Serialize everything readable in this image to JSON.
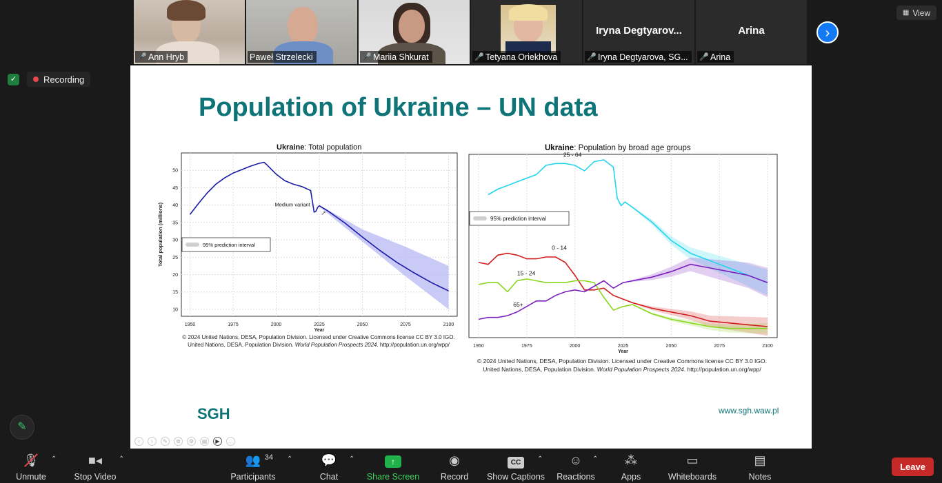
{
  "participants": [
    {
      "name": "Ann Hryb",
      "muted": true,
      "video": true
    },
    {
      "name": "Paweł Strzelecki",
      "muted": false,
      "video": true,
      "active": true
    },
    {
      "name": "Mariia Shkurat",
      "muted": true,
      "video": true
    },
    {
      "name": "Tetyana Oriekhova",
      "muted": true,
      "video": true
    },
    {
      "name": "Iryna Degtyarova, SG...",
      "display_name": "Iryna  Degtyarov...",
      "muted": true,
      "video": false
    },
    {
      "name": "Arina",
      "display_name": "Arina",
      "muted": true,
      "video": false
    }
  ],
  "view_label": "View",
  "recording_label": "Recording",
  "slide": {
    "title": "Population of Ukraine – UN data",
    "logo": "SGH",
    "website": "www.sgh.waw.pl",
    "credit_line1": "© 2024 United Nations, DESA, Population Division. Licensed under Creative Commons license CC BY 3.0 IGO.",
    "credit_line2_a": "United Nations, DESA, Population Division. ",
    "credit_line2_b": "World Population Prospects 2024",
    "credit_line2_c": ". http://population.un.org/wpp/"
  },
  "chart_data": [
    {
      "type": "line",
      "title_bold": "Ukraine",
      "title": ": Total population",
      "xlabel": "Year",
      "ylabel": "Total population (millions)",
      "xlim": [
        1945,
        2105
      ],
      "ylim": [
        8,
        55
      ],
      "x_ticks": [
        1950,
        1975,
        2000,
        2025,
        2050,
        2075,
        2100
      ],
      "y_ticks": [
        10,
        15,
        20,
        25,
        30,
        35,
        40,
        45,
        50
      ],
      "grid": true,
      "legend": "95% prediction interval",
      "annotation": "Medium variant",
      "series": [
        {
          "color": "#1a1aa8",
          "x": [
            1950,
            1955,
            1960,
            1965,
            1970,
            1975,
            1980,
            1985,
            1990,
            1993,
            1995,
            2000,
            2005,
            2010,
            2015,
            2020,
            2022,
            2023,
            2024,
            2025,
            2030,
            2040,
            2050,
            2060,
            2070,
            2080,
            2090,
            2100
          ],
          "y": [
            37.3,
            40.5,
            43.5,
            46,
            47.8,
            49.2,
            50.2,
            51.2,
            52.0,
            52.3,
            51.4,
            48.9,
            47.0,
            46.0,
            45.3,
            44.2,
            38.0,
            38.2,
            39.3,
            39.8,
            38.3,
            34.8,
            30.8,
            27.0,
            23.5,
            20.5,
            17.7,
            15.3
          ]
        }
      ],
      "interval": {
        "color": "#b8b8f4",
        "x": [
          2025,
          2050,
          2075,
          2100
        ],
        "low": [
          39.5,
          29.5,
          19.5,
          10.0
        ],
        "high": [
          40.0,
          33.0,
          28.0,
          22.5
        ]
      }
    },
    {
      "type": "line",
      "title_bold": "Ukraine",
      "title": ": Population by broad age groups",
      "xlabel": "Year",
      "xlim": [
        1945,
        2105
      ],
      "ylim": [
        0,
        100
      ],
      "x_ticks": [
        1950,
        1975,
        2000,
        2025,
        2050,
        2075,
        2100
      ],
      "grid": true,
      "legend": "95% prediction interval",
      "series": [
        {
          "name": "25 - 64",
          "color": "#22d4ee",
          "x": [
            1955,
            1960,
            1965,
            1970,
            1975,
            1980,
            1985,
            1990,
            1995,
            2000,
            2005,
            2010,
            2015,
            2020,
            2022,
            2024,
            2026,
            2030,
            2040,
            2050,
            2060,
            2070,
            2080,
            2090,
            2100
          ],
          "y": [
            78,
            81,
            83,
            85,
            87,
            89,
            94,
            95,
            95,
            94,
            91,
            96,
            97,
            93,
            76,
            72,
            74,
            71,
            63,
            53,
            46,
            42,
            38,
            34,
            30
          ]
        },
        {
          "name": "0 - 14",
          "color": "#d11c1c",
          "x": [
            1950,
            1955,
            1960,
            1965,
            1970,
            1975,
            1980,
            1985,
            1990,
            1995,
            2000,
            2005,
            2010,
            2015,
            2020,
            2025,
            2030,
            2040,
            2050,
            2060,
            2070,
            2080,
            2090,
            2100
          ],
          "y": [
            41,
            40,
            45,
            46,
            45,
            43,
            43,
            44,
            44,
            41,
            34,
            26,
            26,
            27,
            23,
            21,
            19,
            16,
            14,
            12,
            9,
            8,
            7,
            6
          ]
        },
        {
          "name": "15 - 24",
          "color": "#8ad61f",
          "x": [
            1950,
            1955,
            1960,
            1965,
            1970,
            1975,
            1980,
            1985,
            1990,
            1995,
            2000,
            2005,
            2010,
            2015,
            2020,
            2025,
            2030,
            2040,
            2050,
            2060,
            2070,
            2080,
            2090,
            2100
          ],
          "y": [
            29,
            30,
            30,
            25,
            31,
            32,
            31,
            30,
            30,
            30,
            31,
            31,
            30,
            22,
            15,
            17,
            18,
            13,
            10,
            8,
            6,
            5,
            5,
            5
          ]
        },
        {
          "name": "65+",
          "color": "#7a1fbf",
          "x": [
            1950,
            1955,
            1960,
            1965,
            1970,
            1975,
            1980,
            1985,
            1990,
            1995,
            2000,
            2005,
            2010,
            2015,
            2020,
            2025,
            2030,
            2040,
            2050,
            2060,
            2070,
            2080,
            2090,
            2100
          ],
          "y": [
            10,
            11,
            11,
            12,
            14,
            17,
            20,
            20,
            23,
            25,
            26,
            25,
            28,
            31,
            27,
            30,
            31,
            33,
            36,
            40,
            38,
            36,
            34,
            30
          ]
        }
      ],
      "series_labels": [
        "25 - 64",
        "0 - 14",
        "15 - 24",
        "65+"
      ]
    }
  ],
  "toolbar": {
    "unmute": "Unmute",
    "stop_video": "Stop Video",
    "participants": "Participants",
    "participants_count": "34",
    "chat": "Chat",
    "share_screen": "Share Screen",
    "record": "Record",
    "show_captions": "Show Captions",
    "reactions": "Reactions",
    "apps": "Apps",
    "whiteboards": "Whiteboards",
    "notes": "Notes",
    "leave": "Leave"
  }
}
